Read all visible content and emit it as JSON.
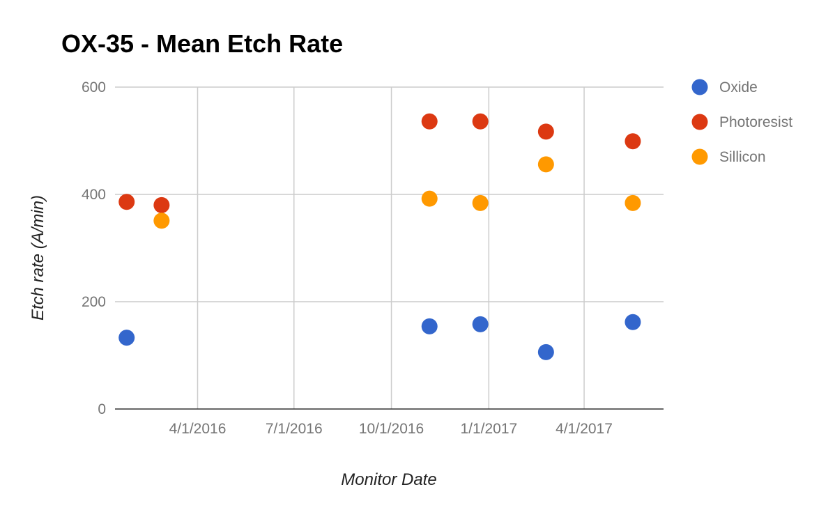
{
  "chart_data": {
    "type": "scatter",
    "title": "OX-35 - Mean Etch Rate",
    "xlabel": "Monitor Date",
    "ylabel": "Etch rate (A/min)",
    "x_axis_type": "date",
    "xlim": [
      "2016-01-14",
      "2017-06-15"
    ],
    "ylim": [
      0,
      600
    ],
    "yticks": [
      0,
      200,
      400,
      600
    ],
    "xticks": [
      {
        "date": "2016-04-01",
        "label": "4/1/2016"
      },
      {
        "date": "2016-07-01",
        "label": "7/1/2016"
      },
      {
        "date": "2016-10-01",
        "label": "10/1/2016"
      },
      {
        "date": "2017-01-01",
        "label": "1/1/2017"
      },
      {
        "date": "2017-04-01",
        "label": "4/1/2017"
      }
    ],
    "grid": true,
    "legend_position": "right",
    "series": [
      {
        "name": "Oxide",
        "color": "#3366cc",
        "points": [
          {
            "x": "2016-01-25",
            "y": 133
          },
          {
            "x": "2016-11-06",
            "y": 154
          },
          {
            "x": "2016-12-24",
            "y": 158
          },
          {
            "x": "2017-02-24",
            "y": 106
          },
          {
            "x": "2017-05-17",
            "y": 162
          }
        ]
      },
      {
        "name": "Photoresist",
        "color": "#dc3912",
        "points": [
          {
            "x": "2016-01-25",
            "y": 386
          },
          {
            "x": "2016-02-27",
            "y": 380
          },
          {
            "x": "2016-11-06",
            "y": 536
          },
          {
            "x": "2016-12-24",
            "y": 536
          },
          {
            "x": "2017-02-24",
            "y": 517
          },
          {
            "x": "2017-05-17",
            "y": 499
          }
        ]
      },
      {
        "name": "Sillicon",
        "color": "#ff9900",
        "points": [
          {
            "x": "2016-02-27",
            "y": 351
          },
          {
            "x": "2016-11-06",
            "y": 392
          },
          {
            "x": "2016-12-24",
            "y": 384
          },
          {
            "x": "2017-02-24",
            "y": 456
          },
          {
            "x": "2017-05-17",
            "y": 384
          }
        ]
      }
    ]
  }
}
